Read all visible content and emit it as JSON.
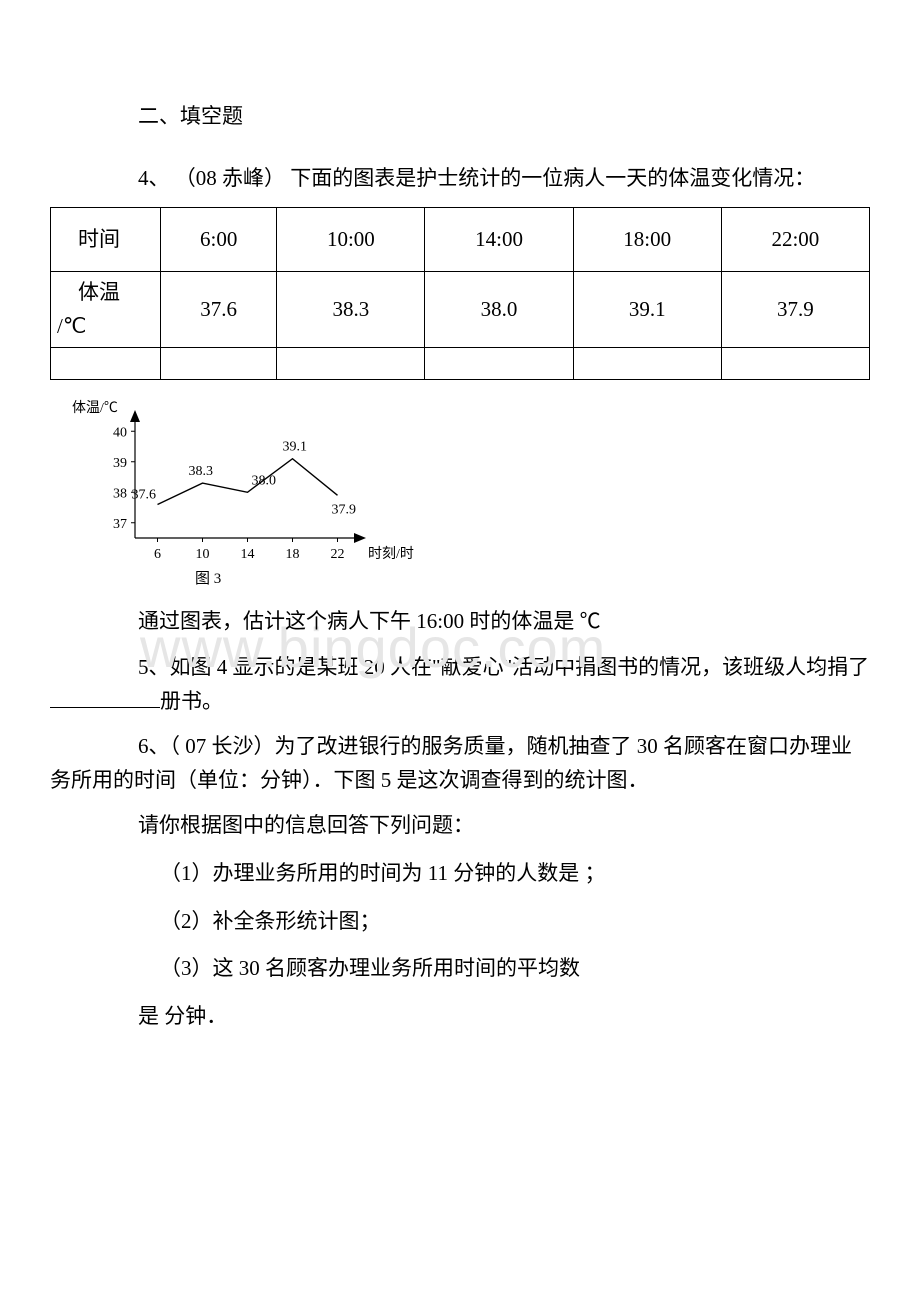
{
  "sections": {
    "fill_blank_heading": "二、填空题",
    "q4": {
      "number": "4、",
      "source": "（08 赤峰）",
      "prompt": "下面的图表是护士统计的一位病人一天的体温变化情况：",
      "table": {
        "row1_label": "时间",
        "row2_label": "体温/℃",
        "times": [
          "6:00",
          "10:00",
          "14:00",
          "18:00",
          "22:00"
        ],
        "temps": [
          "37.6",
          "38.3",
          "38.0",
          "39.1",
          "37.9"
        ]
      },
      "chart": {
        "type": "line",
        "y_label": "体温/℃",
        "x_label": "时刻/时",
        "x_ticks": [
          "6",
          "10",
          "14",
          "18",
          "22"
        ],
        "y_ticks": [
          "37",
          "38",
          "39",
          "40"
        ],
        "x_vals": [
          6,
          10,
          14,
          18,
          22
        ],
        "y_vals": [
          37.6,
          38.3,
          38.0,
          39.1,
          37.9
        ],
        "point_labels": [
          "37.6",
          "38.3",
          "38.0",
          "39.1",
          "37.9"
        ],
        "caption": "图 3",
        "axis_color": "#000000",
        "line_color": "#000000",
        "bg": "#ffffff",
        "font_size": 14
      },
      "tail": "通过图表，估计这个病人下午 16:00 时的体温是   ℃"
    },
    "q5": {
      "text": "5、如图 4 显示的是某班 20 人在\"献爱心\"活动中捐图书的情况，该班级人均捐了",
      "tail": "册书。"
    },
    "q6": {
      "head": "6、（ 07 长沙）为了改进银行的服务质量，随机抽查了 30 名顾客在窗口办理业务所用的时间（单位：分钟）．下图 5 是这次调查得到的统计图．",
      "lead": "请你根据图中的信息回答下列问题：",
      "sub1": "（1）办理业务所用的时间为 11 分钟的人数是  ；",
      "sub2": "（2）补全条形统计图；",
      "sub3": "（3）这 30 名顾客办理业务所用时间的平均数",
      "sub3b": "是   分钟．"
    }
  },
  "watermark": "www.bingdoc.com"
}
